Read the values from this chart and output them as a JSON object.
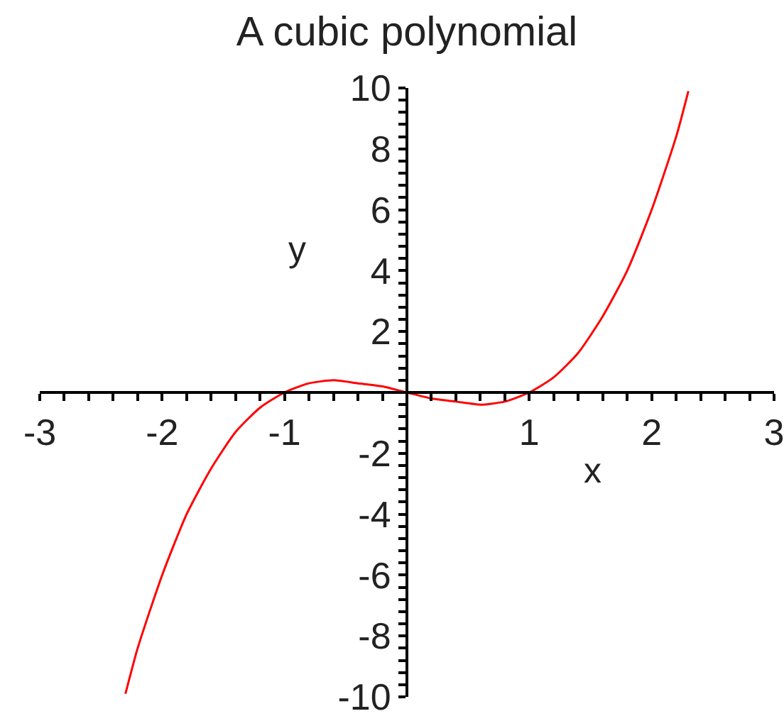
{
  "chart_data": {
    "type": "line",
    "title": "A cubic polynomial",
    "xlabel": "x",
    "ylabel": "y",
    "color": "#ff0000",
    "line_style": "solid",
    "x": [
      -2.3,
      -2.2,
      -2.0,
      -1.8,
      -1.6,
      -1.4,
      -1.2,
      -1.0,
      -0.8,
      -0.6,
      -0.4,
      -0.2,
      0,
      0.2,
      0.4,
      0.6,
      0.8,
      1.0,
      1.2,
      1.4,
      1.6,
      1.8,
      2.0,
      2.2,
      2.3
    ],
    "values": [
      -9.9,
      -8.4,
      -6.0,
      -4.0,
      -2.5,
      -1.3,
      -0.5,
      0,
      0.3,
      0.4,
      0.3,
      0.2,
      0,
      -0.2,
      -0.3,
      -0.4,
      -0.3,
      0,
      0.5,
      1.3,
      2.5,
      4.0,
      6.0,
      8.4,
      9.9
    ],
    "xlim": [
      -3,
      3
    ],
    "ylim": [
      -10,
      10
    ],
    "xticks": [
      -3,
      {
        "value": -2.8,
        "label": null
      },
      {
        "value": -2.6,
        "label": null
      },
      {
        "value": -2.4,
        "label": null
      },
      {
        "value": -2.2,
        "label": null
      },
      -2,
      {
        "value": -1.8,
        "label": null
      },
      {
        "value": -1.6,
        "label": null
      },
      {
        "value": -1.4,
        "label": null
      },
      {
        "value": -1.2,
        "label": null
      },
      -1,
      {
        "value": -0.8,
        "label": null
      },
      {
        "value": -0.6,
        "label": null
      },
      {
        "value": -0.4,
        "label": null
      },
      {
        "value": -0.2,
        "label": null
      },
      {
        "value": 0,
        "label": null
      },
      {
        "value": 0.2,
        "label": null
      },
      {
        "value": 0.4,
        "label": null
      },
      {
        "value": 0.6,
        "label": null
      },
      {
        "value": 0.8,
        "label": null
      },
      1,
      {
        "value": 1.2,
        "label": null
      },
      {
        "value": 1.4,
        "label": null
      },
      {
        "value": 1.6,
        "label": null
      },
      {
        "value": 1.8,
        "label": null
      },
      2,
      {
        "value": 2.2,
        "label": null
      },
      {
        "value": 2.4,
        "label": null
      },
      {
        "value": 2.6,
        "label": null
      },
      {
        "value": 2.8,
        "label": null
      },
      3
    ],
    "yticks": [
      -10,
      {
        "value": -9.6,
        "label": null
      },
      {
        "value": -9.2,
        "label": null
      },
      {
        "value": -8.8,
        "label": null
      },
      {
        "value": -8.4,
        "label": null
      },
      -8,
      {
        "value": -7.6,
        "label": null
      },
      {
        "value": -7.2,
        "label": null
      },
      {
        "value": -6.8,
        "label": null
      },
      {
        "value": -6.4,
        "label": null
      },
      -6,
      {
        "value": -5.6,
        "label": null
      },
      {
        "value": -5.2,
        "label": null
      },
      {
        "value": -4.8,
        "label": null
      },
      {
        "value": -4.4,
        "label": null
      },
      -4,
      {
        "value": -3.6,
        "label": null
      },
      {
        "value": -3.2,
        "label": null
      },
      {
        "value": -2.8,
        "label": null
      },
      {
        "value": -2.4,
        "label": null
      },
      -2,
      {
        "value": -1.6,
        "label": null
      },
      {
        "value": -1.2,
        "label": null
      },
      {
        "value": -0.8,
        "label": null
      },
      {
        "value": -0.4,
        "label": null
      },
      {
        "value": 0,
        "label": null
      },
      {
        "value": 0.4,
        "label": null
      },
      {
        "value": 0.8,
        "label": null
      },
      {
        "value": 1.2,
        "label": null
      },
      {
        "value": 1.6,
        "label": null
      },
      2,
      {
        "value": 2.4,
        "label": null
      },
      {
        "value": 2.8,
        "label": null
      },
      {
        "value": 3.2,
        "label": null
      },
      {
        "value": 3.6,
        "label": null
      },
      4,
      {
        "value": 4.4,
        "label": null
      },
      {
        "value": 4.8,
        "label": null
      },
      {
        "value": 5.2,
        "label": null
      },
      {
        "value": 5.6,
        "label": null
      },
      6,
      {
        "value": 6.4,
        "label": null
      },
      {
        "value": 6.8,
        "label": null
      },
      {
        "value": 7.2,
        "label": null
      },
      {
        "value": 7.6,
        "label": null
      },
      8,
      {
        "value": 8.4,
        "label": null
      },
      {
        "value": 8.8,
        "label": null
      },
      {
        "value": 9.2,
        "label": null
      },
      {
        "value": 9.6,
        "label": null
      },
      10
    ]
  }
}
